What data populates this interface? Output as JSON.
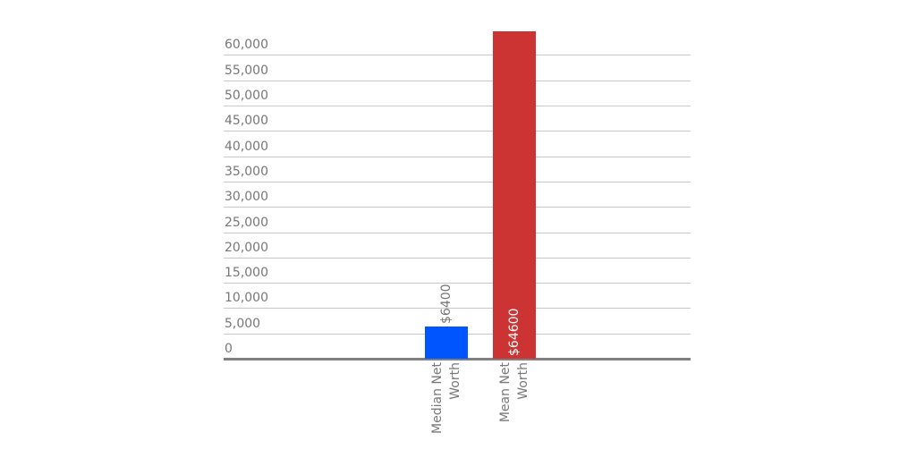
{
  "chart_data": {
    "type": "bar",
    "title": "",
    "xlabel": "",
    "ylabel": "",
    "categories": [
      "Median Net Worth",
      "Mean Net Worth"
    ],
    "category_lines": [
      [
        "Median Net",
        "Worth"
      ],
      [
        "Mean Net",
        "Worth"
      ]
    ],
    "values": [
      6400,
      64600
    ],
    "data_labels": [
      "$6400",
      "$64600"
    ],
    "colors": [
      "#0055ff",
      "#cc3333"
    ],
    "ylim": [
      0,
      65000
    ],
    "yticks": [
      0,
      5000,
      10000,
      15000,
      20000,
      25000,
      30000,
      35000,
      40000,
      45000,
      50000,
      55000,
      60000
    ],
    "ytick_labels": [
      "0",
      "5,000",
      "10,000",
      "15,000",
      "20,000",
      "25,000",
      "30,000",
      "35,000",
      "40,000",
      "45,000",
      "50,000",
      "55,000",
      "60,000"
    ],
    "grid": true,
    "legend": false
  }
}
